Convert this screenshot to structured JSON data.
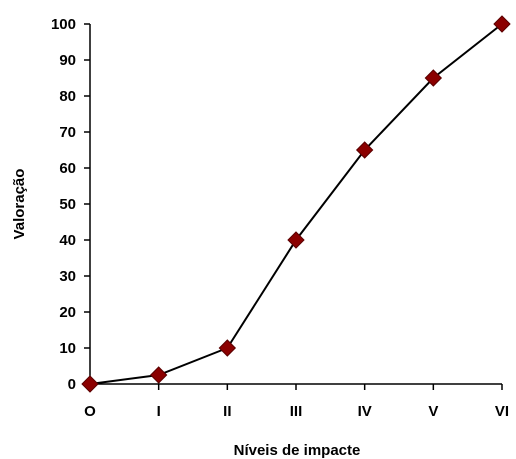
{
  "chart_data": {
    "type": "line",
    "title": "",
    "xlabel": "Níveis de impacte",
    "ylabel": "Valoração",
    "categories": [
      "O",
      "I",
      "II",
      "III",
      "IV",
      "V",
      "VI"
    ],
    "series": [
      {
        "values": [
          0,
          2.5,
          10,
          40,
          65,
          85,
          100
        ]
      }
    ],
    "ylim": [
      0,
      100
    ],
    "yticks": [
      0,
      10,
      20,
      30,
      40,
      50,
      60,
      70,
      80,
      90,
      100
    ],
    "grid": false,
    "legend": "none",
    "line_color": "#000000",
    "marker_color": "#8b0000",
    "marker": "diamond"
  }
}
